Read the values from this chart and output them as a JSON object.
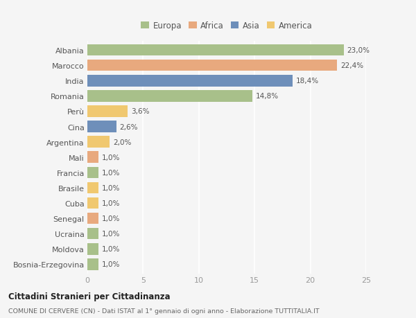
{
  "countries": [
    "Albania",
    "Marocco",
    "India",
    "Romania",
    "Perù",
    "Cina",
    "Argentina",
    "Mali",
    "Francia",
    "Brasile",
    "Cuba",
    "Senegal",
    "Ucraina",
    "Moldova",
    "Bosnia-Erzegovina"
  ],
  "values": [
    23.0,
    22.4,
    18.4,
    14.8,
    3.6,
    2.6,
    2.0,
    1.0,
    1.0,
    1.0,
    1.0,
    1.0,
    1.0,
    1.0,
    1.0
  ],
  "labels": [
    "23,0%",
    "22,4%",
    "18,4%",
    "14,8%",
    "3,6%",
    "2,6%",
    "2,0%",
    "1,0%",
    "1,0%",
    "1,0%",
    "1,0%",
    "1,0%",
    "1,0%",
    "1,0%",
    "1,0%"
  ],
  "continents": [
    "Europa",
    "Africa",
    "Asia",
    "Europa",
    "America",
    "Asia",
    "America",
    "Africa",
    "Europa",
    "America",
    "America",
    "Africa",
    "Europa",
    "Europa",
    "Europa"
  ],
  "continent_colors": {
    "Europa": "#a8c08a",
    "Africa": "#e8a97e",
    "Asia": "#6e8fba",
    "America": "#f0c870"
  },
  "legend_order": [
    "Europa",
    "Africa",
    "Asia",
    "America"
  ],
  "title": "Cittadini Stranieri per Cittadinanza",
  "subtitle": "COMUNE DI CERVERE (CN) - Dati ISTAT al 1° gennaio di ogni anno - Elaborazione TUTTITALIA.IT",
  "xlim": [
    0,
    25
  ],
  "xticks": [
    0,
    5,
    10,
    15,
    20,
    25
  ],
  "bg_color": "#f5f5f5",
  "grid_color": "#ffffff",
  "bar_height": 0.75
}
